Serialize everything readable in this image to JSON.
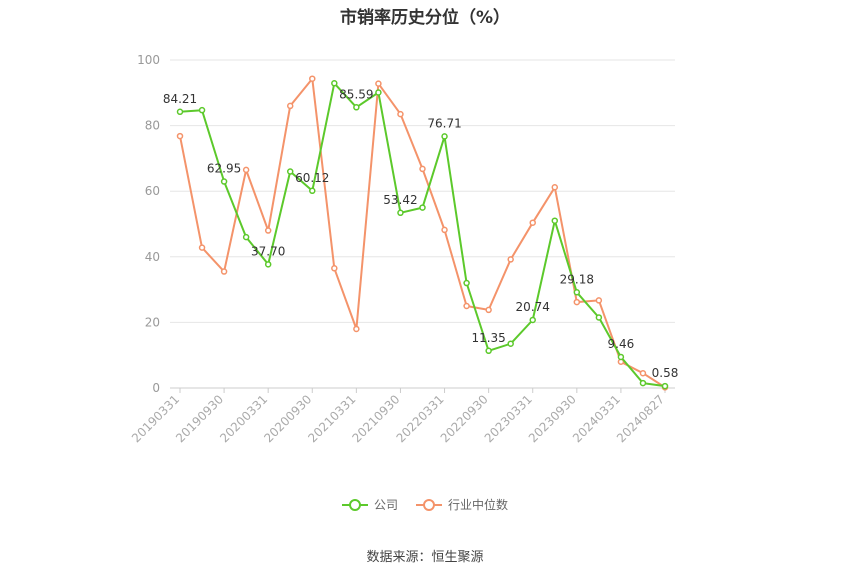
{
  "chart_data": {
    "type": "line",
    "title": "市销率历史分位（%）",
    "source": "数据来源：恒生聚源",
    "ylim": [
      0,
      100
    ],
    "yticks": [
      0,
      20,
      40,
      60,
      80,
      100
    ],
    "x_tick_labels": [
      "20190331",
      "20190930",
      "20200331",
      "20200930",
      "20210331",
      "20210930",
      "20220331",
      "20220930",
      "20230331",
      "20230930",
      "20240331",
      "20240827"
    ],
    "grid": true,
    "legend_position": "bottom",
    "series": [
      {
        "name": "公司",
        "color": "#5cc92b",
        "values": [
          84.21,
          84.7,
          62.95,
          46.0,
          37.7,
          66.0,
          60.12,
          92.9,
          85.59,
          90.1,
          53.42,
          55.0,
          76.71,
          32.0,
          11.35,
          13.5,
          20.74,
          51.0,
          29.18,
          21.5,
          9.46,
          1.5,
          0.58
        ],
        "labels": [
          "84.21",
          "",
          "62.95",
          "",
          "37.70",
          "",
          "60.12",
          "",
          "85.59",
          "",
          "53.42",
          "",
          "76.71",
          "",
          "11.35",
          "",
          "20.74",
          "",
          "29.18",
          "",
          "9.46",
          "",
          "0.58"
        ]
      },
      {
        "name": "行业中位数",
        "color": "#f4936a",
        "values": [
          76.8,
          42.8,
          35.5,
          66.5,
          48.0,
          86.0,
          94.3,
          36.5,
          18.0,
          92.8,
          83.5,
          66.8,
          48.2,
          25.0,
          23.8,
          39.2,
          50.4,
          61.2,
          26.2,
          26.7,
          8.0,
          4.5,
          0.2
        ]
      }
    ]
  }
}
